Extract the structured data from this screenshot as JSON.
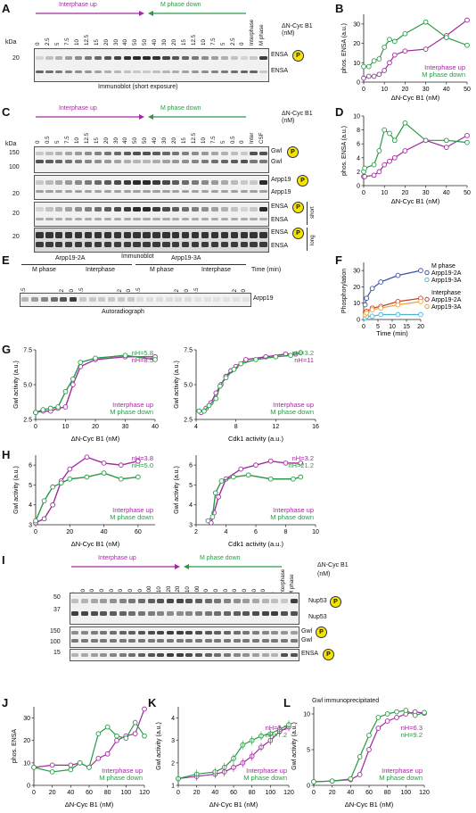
{
  "colors": {
    "interphase": "#a22aa0",
    "mphase": "#2a9a47",
    "blue": "#3b4fb0",
    "cyan": "#4cb6d8",
    "red": "#c8402a",
    "orange": "#f0a030",
    "pbadge": "#f5e400"
  },
  "panels": {
    "A": {
      "letter": "A",
      "arrow_left": "Interphase up",
      "arrow_right": "M phase down",
      "unit_line1": "ΔN-Cyc B1",
      "unit_line2": "(nM)",
      "lanes": [
        "0",
        "2.5",
        "5",
        "7.5",
        "10",
        "12.5",
        "15",
        "20",
        "30",
        "40",
        "50",
        "50",
        "40",
        "30",
        "20",
        "15",
        "12.5",
        "10",
        "7.5",
        "5",
        "2.5",
        "0"
      ],
      "extra_lanes": [
        "Interphase",
        "M phase"
      ],
      "kda": "kDa",
      "marker": "20",
      "labels": [
        "ENSA",
        "ENSA"
      ],
      "caption": "Immunoblot (short exposure)"
    },
    "B": {
      "letter": "B"
    },
    "C": {
      "letter": "C",
      "arrow_left": "Interphase up",
      "arrow_right": "M phase down",
      "unit_line1": "ΔN-Cyc B1",
      "unit_line2": "(nM)",
      "lanes": [
        "0",
        "0.5",
        "5",
        "7.5",
        "10",
        "12.5",
        "15",
        "20",
        "30",
        "40",
        "50",
        "50",
        "40",
        "30",
        "20",
        "15",
        "12.5",
        "10",
        "7.5",
        "5",
        "0.5",
        "0"
      ],
      "extra_lanes": [
        "Inter",
        "CSF"
      ],
      "kda": "kDa",
      "markers": [
        "150",
        "100",
        "20",
        "20",
        "20"
      ],
      "labels": [
        "Gwl",
        "Gwl",
        "Arpp19",
        "Arpp19",
        "ENSA",
        "ENSA",
        "ENSA",
        "ENSA"
      ],
      "short": "short",
      "long": "long",
      "caption": "Immunoblot"
    },
    "D": {
      "letter": "D"
    },
    "E": {
      "letter": "E",
      "group1": "Arpp19-2A",
      "group2": "Arpp19-3A",
      "cond1": "M phase",
      "cond2": "Interphase",
      "cond3": "M phase",
      "cond4": "Interphase",
      "time_label": "Time (min)",
      "lanes": [
        "0.5",
        "1",
        "3",
        "6",
        "12",
        "20",
        "0.5",
        "1",
        "3",
        "6",
        "12",
        "20",
        "0.5",
        "1",
        "3",
        "6",
        "12",
        "20",
        "0.5",
        "1",
        "3",
        "6",
        "12",
        "20"
      ],
      "band_label": "Arpp19",
      "caption": "Autoradiograph"
    },
    "F": {
      "letter": "F"
    },
    "G": {
      "letter": "G"
    },
    "H": {
      "letter": "H"
    },
    "I": {
      "letter": "I",
      "arrow_left": "Interphase up",
      "arrow_right": "M phase down",
      "unit": "ΔN-Cyc B1",
      "unit2": "(nM)",
      "lanes": [
        "0",
        "20",
        "40",
        "50",
        "60",
        "70",
        "80",
        "90",
        "100",
        "110",
        "120",
        "120",
        "110",
        "100",
        "90",
        "80",
        "70",
        "60",
        "50",
        "40",
        "20",
        "0"
      ],
      "extra_lanes": [
        "Interphase",
        "M phase"
      ],
      "markers": [
        "50",
        "37",
        "150",
        "100",
        "15"
      ],
      "labels": [
        "Nup53",
        "Nup53",
        "Gwl",
        "Gwl",
        "ENSA"
      ]
    },
    "J": {
      "letter": "J"
    },
    "K": {
      "letter": "K"
    },
    "L": {
      "letter": "L",
      "title": "Gwl immunoprecipitated"
    }
  },
  "chart_data": [
    {
      "id": "B",
      "type": "line",
      "ylabel": "phos. ENSA (a.u.)",
      "xlabel": "ΔN-Cyc B1 (nM)",
      "xlim": [
        0,
        50
      ],
      "ylim": [
        0,
        35
      ],
      "xticks": [
        0,
        10,
        20,
        30,
        40,
        50
      ],
      "yticks": [
        0,
        10,
        20,
        30
      ],
      "series": [
        {
          "name": "Interphase up",
          "color": "interphase",
          "x": [
            0,
            2.5,
            5,
            7.5,
            10,
            12.5,
            15,
            20,
            30,
            40,
            50
          ],
          "y": [
            2,
            3,
            3,
            4,
            6,
            10,
            14,
            16,
            17,
            24,
            32
          ]
        },
        {
          "name": "M phase down",
          "color": "mphase",
          "x": [
            0,
            2.5,
            5,
            7.5,
            10,
            12.5,
            15,
            20,
            30,
            40,
            50
          ],
          "y": [
            8,
            8,
            11,
            12,
            18,
            22,
            21,
            25,
            31,
            23,
            19
          ]
        }
      ],
      "legend": "bottom-right"
    },
    {
      "id": "D",
      "type": "line",
      "ylabel": "phos. ENSA (a.u.)",
      "xlabel": "ΔN-Cyc B1 (nM)",
      "xlim": [
        0,
        50
      ],
      "ylim": [
        0,
        10
      ],
      "xticks": [
        0,
        10,
        20,
        30,
        40,
        50
      ],
      "yticks": [
        0,
        2,
        4,
        6,
        8,
        10
      ],
      "series": [
        {
          "name": "Interphase up",
          "color": "interphase",
          "x": [
            0,
            0.5,
            5,
            7.5,
            10,
            12.5,
            15,
            20,
            30,
            40,
            50
          ],
          "y": [
            1.3,
            1.3,
            1.5,
            2,
            3,
            3.5,
            4,
            5,
            6.5,
            5.5,
            7.2
          ]
        },
        {
          "name": "M phase down",
          "color": "mphase",
          "x": [
            0,
            0.5,
            5,
            7.5,
            10,
            12.5,
            15,
            20,
            30,
            40,
            50
          ],
          "y": [
            2,
            2.5,
            3,
            5,
            8,
            7.5,
            6.5,
            9,
            6.5,
            6.5,
            6.2
          ]
        }
      ]
    },
    {
      "id": "F",
      "type": "scatter",
      "ylabel": "Phosphorylation",
      "xlabel": "Time (min)",
      "xlim": [
        0,
        20
      ],
      "ylim": [
        0,
        35
      ],
      "xticks": [
        0,
        5,
        10,
        15,
        20
      ],
      "yticks": [
        0,
        10,
        20,
        30
      ],
      "legend_groups": [
        "M phase",
        "Interphase"
      ],
      "series": [
        {
          "name": "Arpp19-2A",
          "group": "M phase",
          "color": "blue",
          "x": [
            0.5,
            1,
            3,
            6,
            12,
            20
          ],
          "y": [
            9,
            13,
            19,
            23,
            27,
            30
          ]
        },
        {
          "name": "Arpp19-3A",
          "group": "M phase",
          "color": "cyan",
          "x": [
            0.5,
            1,
            3,
            6,
            12,
            20
          ],
          "y": [
            1,
            2,
            2,
            3,
            3,
            3
          ]
        },
        {
          "name": "Arpp19-2A",
          "group": "Interphase",
          "color": "red",
          "x": [
            0.5,
            1,
            3,
            6,
            12,
            20
          ],
          "y": [
            4,
            5,
            7,
            8,
            11,
            13
          ]
        },
        {
          "name": "Arpp19-3A",
          "group": "Interphase",
          "color": "orange",
          "x": [
            0.5,
            1,
            3,
            6,
            12,
            20
          ],
          "y": [
            3,
            4,
            6,
            7,
            9,
            11
          ]
        }
      ]
    },
    {
      "id": "G1",
      "type": "scatter",
      "ylabel": "Gwl activity (a.u.)",
      "xlabel": "ΔN-Cyc B1 (nM)",
      "xlim": [
        0,
        40
      ],
      "ylim": [
        2.5,
        7.5
      ],
      "xticks": [
        0,
        10,
        20,
        30,
        40
      ],
      "yticks": [
        2.5,
        5.0,
        7.5
      ],
      "nh": [
        "nH=5.8",
        "nH=8.5"
      ],
      "nh_colors": [
        "mphase",
        "interphase"
      ],
      "series": [
        {
          "name": "Interphase up",
          "color": "interphase",
          "x": [
            0,
            2.5,
            5,
            7.5,
            10,
            12.5,
            15,
            20,
            30,
            40
          ],
          "y": [
            3.0,
            3.1,
            3.1,
            3.3,
            3.4,
            5.0,
            6.3,
            6.8,
            7.0,
            7.0
          ]
        },
        {
          "name": "M phase down",
          "color": "mphase",
          "x": [
            0,
            2.5,
            5,
            7.5,
            10,
            12.5,
            15,
            20,
            30,
            40
          ],
          "y": [
            3.0,
            3.2,
            3.3,
            3.4,
            4.5,
            5.4,
            6.6,
            6.9,
            7.1,
            6.8
          ]
        }
      ]
    },
    {
      "id": "G2",
      "type": "scatter",
      "ylabel": "Gwl activity (a.u.)",
      "xlabel": "Cdk1 activity (a.u.)",
      "xlim": [
        4,
        16
      ],
      "ylim": [
        2.5,
        7.5
      ],
      "xticks": [
        4,
        8,
        12,
        16
      ],
      "yticks": [
        2.5,
        5.0,
        7.5
      ],
      "nh": [
        "nH=3.2",
        "nH=11"
      ],
      "nh_colors": [
        "mphase",
        "interphase"
      ],
      "series": [
        {
          "name": "Interphase up",
          "color": "interphase",
          "x": [
            4.5,
            5,
            5.5,
            6,
            6.5,
            7,
            7.5,
            8,
            9,
            11,
            13,
            14
          ],
          "y": [
            3,
            3.3,
            3.7,
            4.4,
            5,
            5.6,
            6,
            6.3,
            6.8,
            7.0,
            7.2,
            7.2
          ]
        },
        {
          "name": "M phase down",
          "color": "mphase",
          "x": [
            4.3,
            4.8,
            5.3,
            6,
            6.4,
            7,
            7.8,
            8.5,
            10,
            12,
            13.5,
            14.5
          ],
          "y": [
            3.1,
            3.1,
            3.5,
            4,
            4.9,
            5.5,
            6.1,
            6.5,
            6.8,
            7.0,
            7.1,
            7.3
          ]
        }
      ]
    },
    {
      "id": "H1",
      "type": "scatter",
      "ylabel": "Gwl activity (a.u.)",
      "xlabel": "ΔN-Cyc B1 (nM)",
      "xlim": [
        0,
        70
      ],
      "ylim": [
        3,
        6.5
      ],
      "xticks": [
        0,
        20,
        40,
        60
      ],
      "yticks": [
        3,
        4,
        5,
        6
      ],
      "nh": [
        "nH=3.8",
        "nH=5.0"
      ],
      "nh_colors": [
        "interphase",
        "mphase"
      ],
      "series": [
        {
          "name": "Interphase up",
          "color": "interphase",
          "x": [
            0,
            5,
            10,
            15,
            20,
            30,
            40,
            50,
            60
          ],
          "y": [
            3.1,
            3.3,
            4.0,
            5.2,
            5.8,
            6.4,
            6.1,
            6.0,
            6.2
          ]
        },
        {
          "name": "M phase down",
          "color": "mphase",
          "x": [
            0,
            5,
            10,
            15,
            20,
            30,
            40,
            50,
            60
          ],
          "y": [
            3.2,
            4.2,
            4.9,
            5.1,
            5.3,
            5.4,
            5.6,
            5.3,
            5.4
          ]
        }
      ]
    },
    {
      "id": "H2",
      "type": "scatter",
      "ylabel": "Gwl activity (a.u.)",
      "xlabel": "Cdk1 activity (a.u.)",
      "xlim": [
        2,
        10
      ],
      "ylim": [
        3,
        6.5
      ],
      "xticks": [
        2,
        4,
        6,
        8,
        10
      ],
      "yticks": [
        3,
        4,
        5,
        6
      ],
      "nh": [
        "nH=3.2",
        "nH=21.2"
      ],
      "nh_colors": [
        "interphase",
        "mphase"
      ],
      "series": [
        {
          "name": "Interphase up",
          "color": "interphase",
          "x": [
            3,
            3.2,
            3.5,
            4,
            5,
            6,
            7,
            8,
            9
          ],
          "y": [
            3.1,
            3.6,
            4.4,
            5.3,
            5.8,
            6.0,
            6.2,
            6.1,
            6.1
          ]
        },
        {
          "name": "M phase down",
          "color": "mphase",
          "x": [
            2.8,
            3.1,
            3.3,
            3.7,
            4.5,
            5.5,
            7,
            8.5,
            9
          ],
          "y": [
            3.2,
            3.4,
            4.6,
            5.2,
            5.4,
            5.5,
            5.3,
            5.3,
            5.4
          ]
        }
      ]
    },
    {
      "id": "J",
      "type": "line",
      "ylabel": "phos. ENSA",
      "xlabel": "ΔN-Cyc B1 (nM)",
      "xlim": [
        0,
        120
      ],
      "ylim": [
        0,
        35
      ],
      "xticks": [
        0,
        20,
        40,
        60,
        80,
        100,
        120
      ],
      "yticks": [
        0,
        10,
        20,
        30
      ],
      "series": [
        {
          "name": "Interphase up",
          "color": "interphase",
          "x": [
            0,
            20,
            40,
            50,
            60,
            70,
            80,
            90,
            100,
            110,
            120
          ],
          "y": [
            8,
            9,
            9,
            10,
            8,
            12,
            14,
            20,
            22,
            23,
            34
          ]
        },
        {
          "name": "M phase down",
          "color": "mphase",
          "x": [
            0,
            20,
            40,
            50,
            60,
            70,
            80,
            90,
            100,
            110,
            120
          ],
          "y": [
            8,
            6,
            7,
            10,
            8,
            23,
            26,
            22,
            21,
            28,
            22
          ]
        }
      ]
    },
    {
      "id": "K",
      "type": "scatter",
      "ylabel": "Gwl activity (a.u.)",
      "xlabel": "ΔN-Cyc B1 (nM)",
      "xlim": [
        0,
        120
      ],
      "ylim": [
        1,
        4.5
      ],
      "xticks": [
        0,
        20,
        40,
        60,
        80,
        100,
        120
      ],
      "yticks": [
        1,
        2,
        3,
        4
      ],
      "nh": [
        "nH=3.2",
        "nH=7.2"
      ],
      "nh_colors": [
        "interphase",
        "mphase"
      ],
      "series": [
        {
          "name": "Interphase up",
          "color": "interphase",
          "x": [
            0,
            20,
            40,
            50,
            60,
            70,
            80,
            90,
            100,
            110,
            120
          ],
          "y": [
            1.3,
            1.4,
            1.5,
            1.6,
            1.8,
            2.0,
            2.3,
            2.7,
            3.0,
            3.4,
            3.6
          ]
        },
        {
          "name": "M phase down",
          "color": "mphase",
          "x": [
            0,
            20,
            40,
            50,
            60,
            70,
            80,
            90,
            100,
            110,
            120
          ],
          "y": [
            1.3,
            1.5,
            1.6,
            1.8,
            2.2,
            2.8,
            3.0,
            3.2,
            3.3,
            3.5,
            3.7
          ]
        }
      ]
    },
    {
      "id": "L",
      "type": "scatter",
      "title": "Gwl immunoprecipitated",
      "ylabel": "Gwl activity (a.u.)",
      "xlabel": "ΔN-Cyc B1 (nM)",
      "xlim": [
        0,
        120
      ],
      "ylim": [
        0,
        11
      ],
      "xticks": [
        0,
        20,
        40,
        60,
        80,
        100,
        120
      ],
      "yticks": [
        0,
        5,
        10
      ],
      "nh": [
        "nH=6.3",
        "nH=9.2"
      ],
      "nh_colors": [
        "interphase",
        "mphase"
      ],
      "series": [
        {
          "name": "Interphase up",
          "color": "interphase",
          "x": [
            0,
            20,
            40,
            50,
            60,
            70,
            80,
            90,
            100,
            110,
            120
          ],
          "y": [
            0.5,
            0.6,
            0.8,
            1.5,
            5,
            8,
            9,
            9.5,
            10,
            10.3,
            10.1
          ]
        },
        {
          "name": "M phase down",
          "color": "mphase",
          "x": [
            0,
            20,
            40,
            50,
            60,
            70,
            80,
            90,
            100,
            110,
            120
          ],
          "y": [
            0.5,
            0.6,
            0.9,
            4,
            7,
            9.5,
            10,
            10.3,
            10.5,
            9.8,
            10.2
          ]
        }
      ]
    }
  ]
}
